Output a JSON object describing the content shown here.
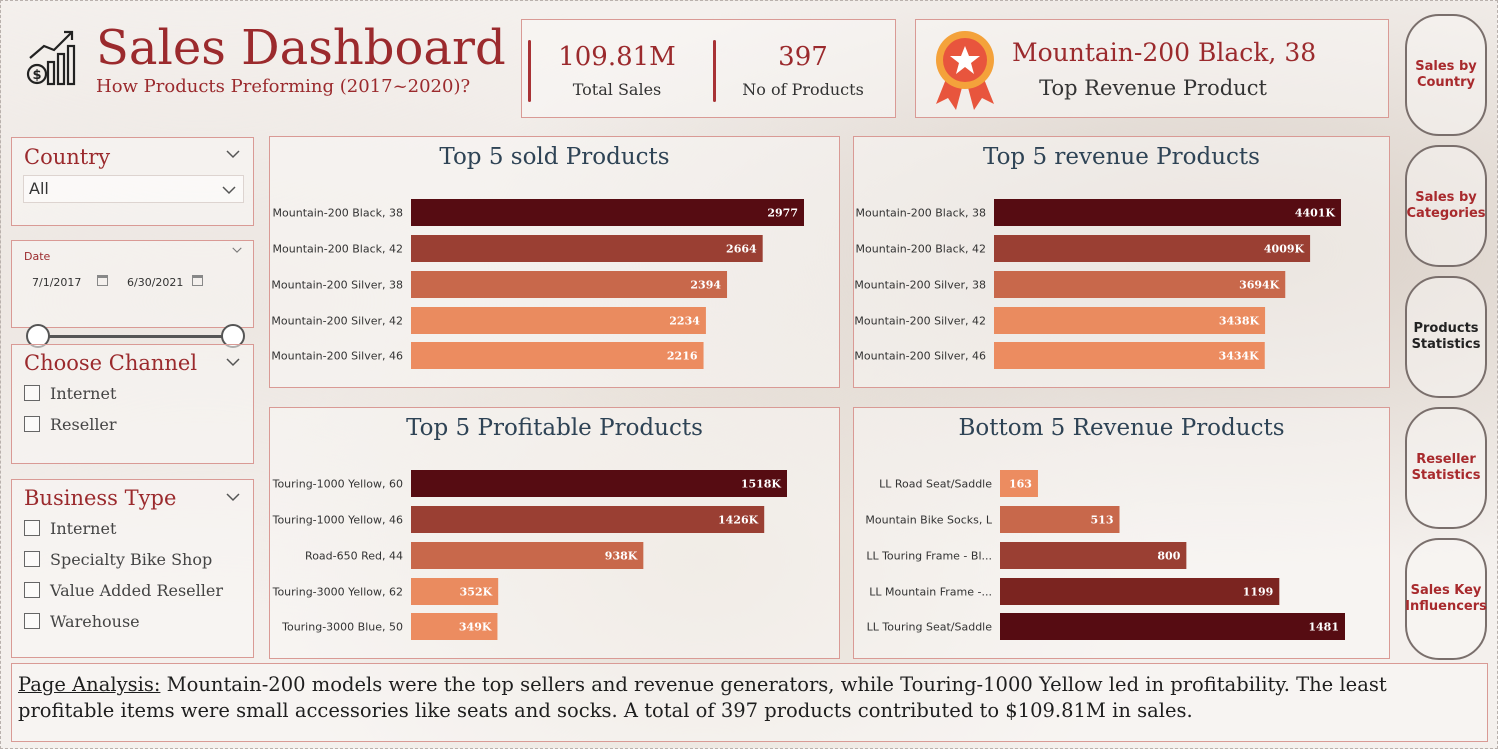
{
  "header": {
    "title": "Sales Dashboard",
    "subtitle": "How Products Preforming (2017~2020)?"
  },
  "kpis": {
    "total_sales_value": "109.81M",
    "total_sales_label": "Total Sales",
    "products_value": "397",
    "products_label": "No of Products"
  },
  "top_product": {
    "name": "Mountain-200 Black, 38",
    "label": "Top Revenue Product"
  },
  "nav": {
    "items": [
      {
        "label": "Sales by Country",
        "active": false
      },
      {
        "label": "Sales by Categories",
        "active": false
      },
      {
        "label": "Products Statistics",
        "active": true
      },
      {
        "label": "Reseller Statistics",
        "active": false
      },
      {
        "label": "Sales Key Influencers",
        "active": false
      }
    ]
  },
  "filters": {
    "country": {
      "title": "Country",
      "selected": "All"
    },
    "date": {
      "title": "Date",
      "start": "7/1/2017",
      "end": "6/30/2021"
    },
    "channel": {
      "title": "Choose Channel",
      "options": [
        "Internet",
        "Reseller"
      ]
    },
    "business_type": {
      "title": "Business Type",
      "options": [
        "Internet",
        "Specialty Bike Shop",
        "Value Added Reseller",
        "Warehouse"
      ]
    }
  },
  "colors": {
    "accent": "#9b2a2d",
    "bar_palette": [
      "#560c12",
      "#9a3f33",
      "#c8684b",
      "#ea8b5f",
      "#ec8c60"
    ],
    "bottom_palette": [
      "#ec8c60",
      "#c8684b",
      "#9a3f33",
      "#7b2420",
      "#560c12"
    ]
  },
  "chart_data": [
    {
      "type": "bar",
      "orientation": "horizontal",
      "title": "Top 5 sold Products",
      "categories": [
        "Mountain-200 Black, 38",
        "Mountain-200 Black, 42",
        "Mountain-200 Silver, 38",
        "Mountain-200 Silver, 42",
        "Mountain-200 Silver, 46"
      ],
      "values": [
        2977,
        2664,
        2394,
        2234,
        2216
      ],
      "labels": [
        "2977",
        "2664",
        "2394",
        "2234",
        "2216"
      ],
      "xlim": [
        0,
        2977
      ]
    },
    {
      "type": "bar",
      "orientation": "horizontal",
      "title": "Top 5 revenue Products",
      "categories": [
        "Mountain-200 Black, 38",
        "Mountain-200 Black, 42",
        "Mountain-200 Silver, 38",
        "Mountain-200 Silver, 42",
        "Mountain-200 Silver, 46"
      ],
      "values": [
        4401,
        4009,
        3694,
        3438,
        3434
      ],
      "labels": [
        "4401K",
        "4009K",
        "3694K",
        "3438K",
        "3434K"
      ],
      "xlim": [
        0,
        4401
      ]
    },
    {
      "type": "bar",
      "orientation": "horizontal",
      "title": "Top 5 Profitable Products",
      "categories": [
        "Touring-1000 Yellow, 60",
        "Touring-1000 Yellow, 46",
        "Road-650 Red, 44",
        "Touring-3000 Yellow, 62",
        "Touring-3000 Blue, 50"
      ],
      "values": [
        1518,
        1426,
        938,
        352,
        349
      ],
      "labels": [
        "1518K",
        "1426K",
        "938K",
        "352K",
        "349K"
      ],
      "xlim": [
        0,
        1518
      ]
    },
    {
      "type": "bar",
      "orientation": "horizontal",
      "title": "Bottom 5 Revenue Products",
      "categories": [
        "LL Road Seat/Saddle",
        "Mountain Bike Socks, L",
        "LL Touring Frame - Bl...",
        "LL Mountain Frame -...",
        "LL Touring Seat/Saddle"
      ],
      "values": [
        163,
        513,
        800,
        1199,
        1481
      ],
      "labels": [
        "163",
        "513",
        "800",
        "1199",
        "1481"
      ],
      "xlim": [
        0,
        1481
      ]
    }
  ],
  "analysis": {
    "label": "Page Analysis:",
    "text": "Mountain-200 models were the top sellers and revenue generators, while Touring-1000 Yellow led in profitability. The least profitable items were small accessories like seats and socks. A total of 397 products contributed to $109.81M in sales."
  }
}
